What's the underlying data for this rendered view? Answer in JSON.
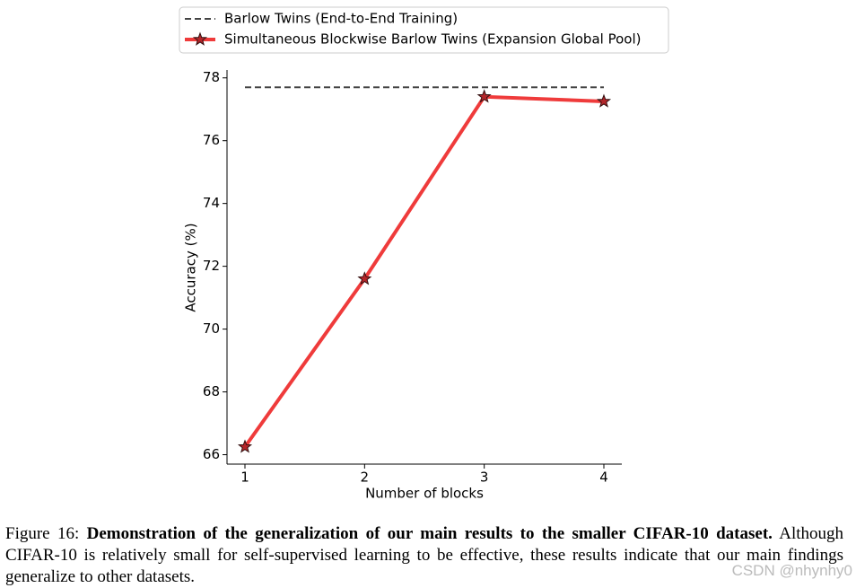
{
  "chart_data": {
    "type": "line",
    "x": [
      1,
      2,
      3,
      4
    ],
    "xlabel": "Number of blocks",
    "ylabel": "Accuracy (%)",
    "xlim": [
      0.85,
      4.15
    ],
    "xticks": [
      1,
      2,
      3,
      4
    ],
    "ylim": [
      65.7,
      78.25
    ],
    "yticks": [
      66,
      68,
      70,
      72,
      74,
      76,
      78
    ],
    "legend": "top",
    "series": [
      {
        "name": "Barlow Twins (End-to-End Training)",
        "color": "#444444",
        "dashed": true,
        "values": [
          77.7,
          77.7,
          77.7,
          77.7
        ]
      },
      {
        "name": "Simultaneous Blockwise Barlow Twins (Expansion Global Pool)",
        "color": "#ef3b3b",
        "marker": "star",
        "values": [
          66.25,
          71.6,
          77.4,
          77.25
        ]
      }
    ]
  },
  "caption": {
    "label": "Figure 16:",
    "bold": "Demonstration of the generalization of our main results to the smaller CIFAR-10 dataset.",
    "text": "Although CIFAR-10 is relatively small for self-supervised learning to be effective, these results indicate that our main findings generalize to other datasets."
  },
  "watermark": "CSDN @nhynhy0"
}
